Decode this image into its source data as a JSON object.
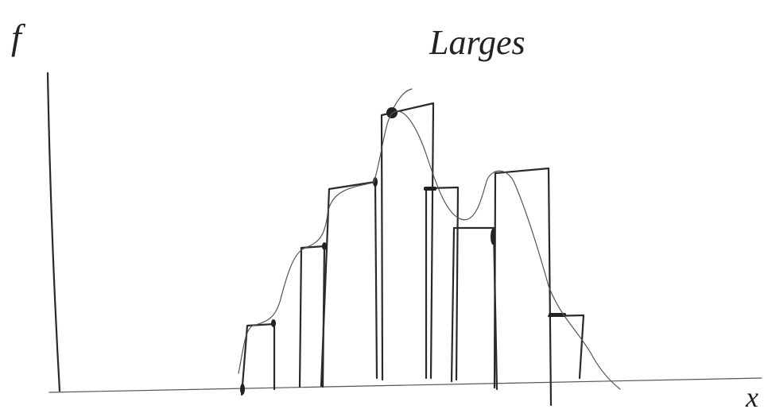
{
  "labels": {
    "y_axis": "f",
    "x_axis": "x",
    "annotation": "Larges"
  }
}
